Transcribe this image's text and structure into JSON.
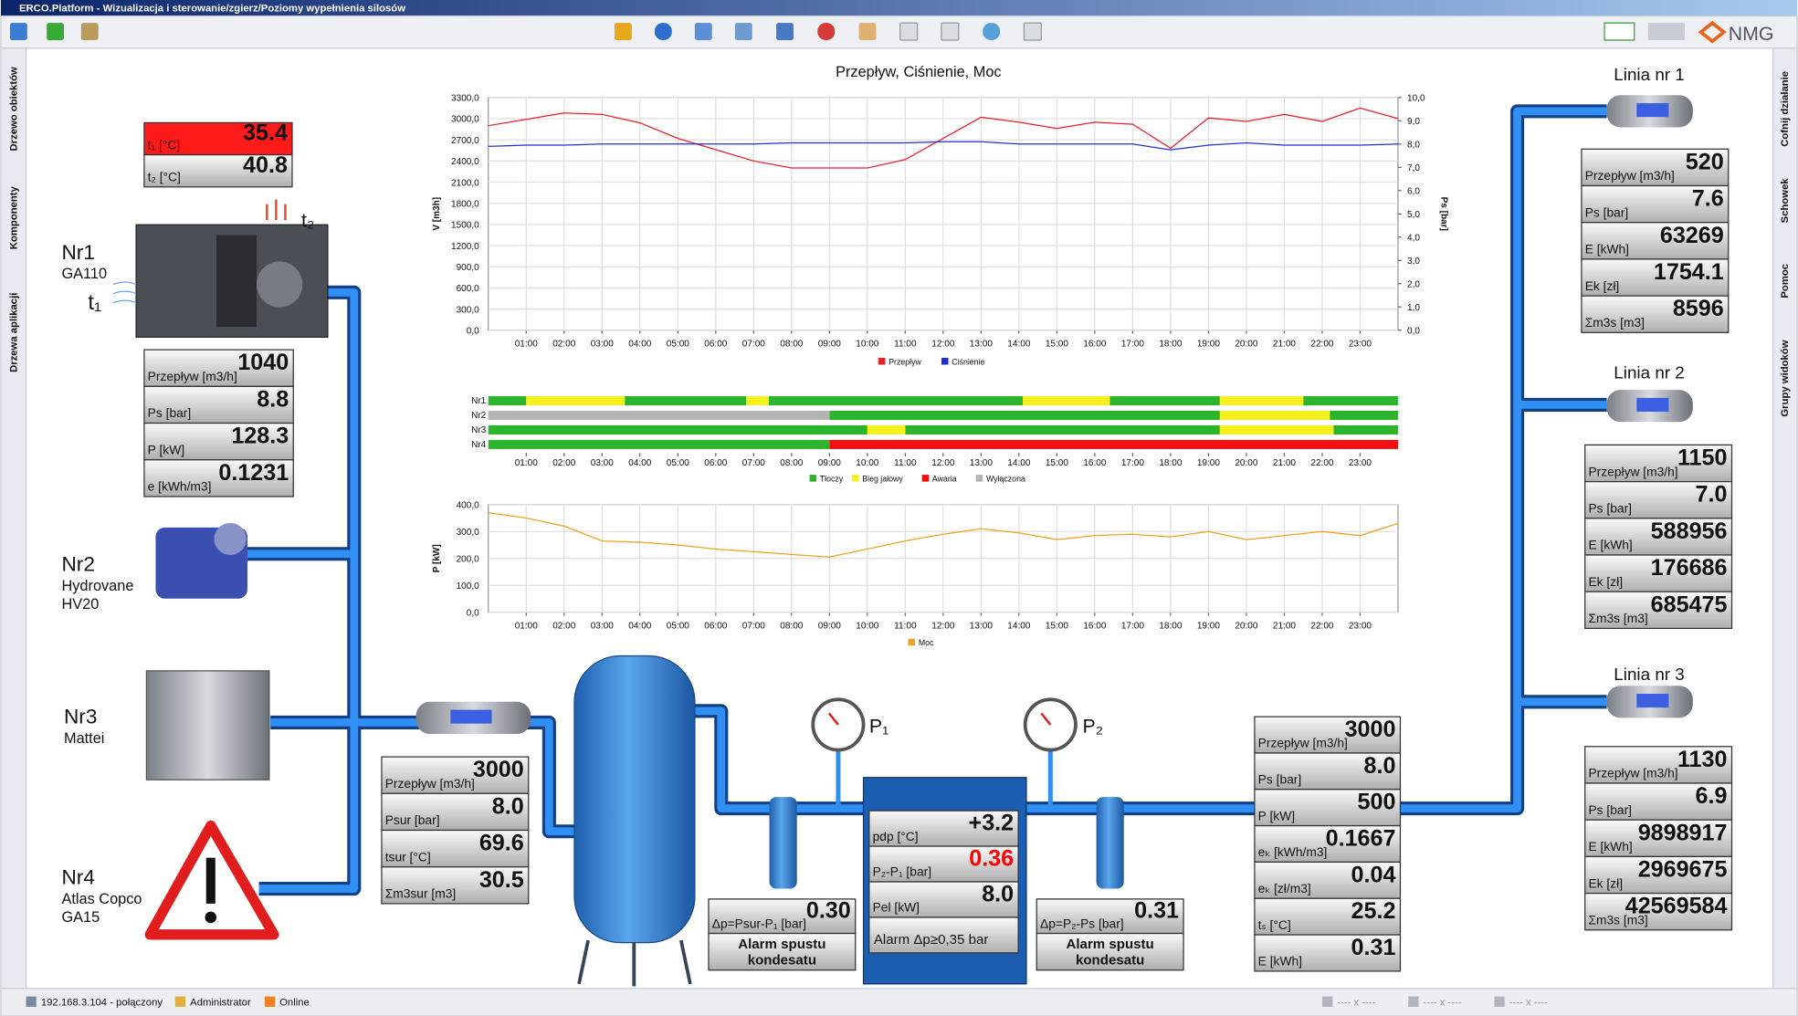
{
  "window": {
    "title": "ERCO.Platform - Wizualizacja i sterowanie/zgierz/Poziomy wypełnienia silosów",
    "logo": "NMG"
  },
  "sidebar_left": [
    "Drzewo obiektów",
    "Komponenty",
    "Drzewa aplikacji"
  ],
  "sidebar_right": [
    "Cofnij działanie",
    "Schowek",
    "Pomoc",
    "Grupy widoków"
  ],
  "status_bar": [
    "192.168.3.104 - połączony",
    "Administrator",
    "Online",
    "---- x ----",
    "---- x ----",
    "---- x ----"
  ],
  "equipment": [
    {
      "name": "Nr1",
      "model": [
        "GA110"
      ]
    },
    {
      "name": "Nr2",
      "model": [
        "Hydrovane",
        "HV20"
      ]
    },
    {
      "name": "Nr3",
      "model": [
        "Mattei"
      ]
    },
    {
      "name": "Nr4",
      "model": [
        "Atlas Copco",
        "GA15"
      ]
    }
  ],
  "sensors": [
    "t₁",
    "t₂"
  ],
  "gauges": [
    "P₁",
    "P₂"
  ],
  "lines": [
    "Linia nr 1",
    "Linia nr 2",
    "Linia nr 3"
  ],
  "panels": [
    {
      "rows": [
        {
          "label": "t₁ [°C]",
          "value": "35.4",
          "color": "#ff1a1a"
        },
        {
          "label": "t₂ [°C]",
          "value": "40.8"
        }
      ]
    },
    {
      "rows": [
        {
          "label": "Przepływ [m3/h]",
          "value": "1040"
        },
        {
          "label": "Ps [bar]",
          "value": "8.8"
        },
        {
          "label": "P [kW]",
          "value": "128.3"
        },
        {
          "label": "e [kWh/m3]",
          "value": "0.1231"
        }
      ]
    },
    {
      "rows": [
        {
          "label": "Przepływ [m3/h]",
          "value": "3000"
        },
        {
          "label": "Psur [bar]",
          "value": "8.0"
        },
        {
          "label": "tsur [°C]",
          "value": "69.6"
        },
        {
          "label": "Σm3sur [m3]",
          "value": "30.5"
        }
      ]
    },
    {
      "rows": [
        {
          "label": "pdp [°C]",
          "value": "+3.2"
        },
        {
          "label": "P₂-P₁ [bar]",
          "value": "0.36",
          "value_color": "#ff0000"
        },
        {
          "label": "Pel [kW]",
          "value": "8.0"
        }
      ],
      "alarm": "Alarm Δp≥0,35 bar"
    },
    {
      "rows": [
        {
          "label": "Δp=Psur-P₁ [bar]",
          "value": "0.30"
        }
      ],
      "notice": [
        "Alarm spustu",
        "kondesatu"
      ]
    },
    {
      "rows": [
        {
          "label": "Δp=P₂-Ps [bar]",
          "value": "0.31"
        }
      ],
      "notice": [
        "Alarm spustu",
        "kondesatu"
      ]
    },
    {
      "rows": [
        {
          "label": "Przepływ [m3/h]",
          "value": "3000"
        },
        {
          "label": "Ps [bar]",
          "value": "8.0"
        },
        {
          "label": "P [kW]",
          "value": "500"
        },
        {
          "label": "eₖ [kWh/m3]",
          "value": "0.1667"
        },
        {
          "label": "eₖ [zł/m3]",
          "value": "0.04"
        },
        {
          "label": "tₛ [°C]",
          "value": "25.2"
        },
        {
          "label": "E [kWh]",
          "value": "0.31"
        }
      ]
    },
    {
      "rows": [
        {
          "label": "Przepływ [m3/h]",
          "value": "520"
        },
        {
          "label": "Ps [bar]",
          "value": "7.6"
        },
        {
          "label": "E [kWh]",
          "value": "63269"
        },
        {
          "label": "Ek [zł]",
          "value": "1754.1"
        },
        {
          "label": "Σm3s [m3]",
          "value": "8596"
        }
      ]
    },
    {
      "rows": [
        {
          "label": "Przepływ [m3/h]",
          "value": "1150"
        },
        {
          "label": "Ps [bar]",
          "value": "7.0"
        },
        {
          "label": "E [kWh]",
          "value": "588956"
        },
        {
          "label": "Ek [zł]",
          "value": "176686"
        },
        {
          "label": "Σm3s [m3]",
          "value": "685475"
        }
      ]
    },
    {
      "rows": [
        {
          "label": "Przepływ [m3/h]",
          "value": "1130"
        },
        {
          "label": "Ps [bar]",
          "value": "6.9"
        },
        {
          "label": "E [kWh]",
          "value": "9898917"
        },
        {
          "label": "Ek [zł]",
          "value": "2969675"
        },
        {
          "label": "Σm3s [m3]",
          "value": "42569584"
        }
      ]
    }
  ],
  "chart_data": [
    {
      "type": "line",
      "title": "Przepływ, Ciśnienie, Moc",
      "ylabel": "V [m3h]",
      "y2label": "Ps [bar]",
      "grid": true,
      "x": [
        0,
        1,
        2,
        3,
        4,
        5,
        6,
        7,
        8,
        9,
        10,
        11,
        12,
        13,
        14,
        15,
        16,
        17,
        18,
        19,
        20,
        21,
        22,
        23,
        24
      ],
      "xlim": [
        0,
        24
      ],
      "xticks": [
        {
          "value": 1,
          "label": "01:00"
        },
        {
          "value": 2,
          "label": "02:00"
        },
        {
          "value": 3,
          "label": "03:00"
        },
        {
          "value": 4,
          "label": "04:00"
        },
        {
          "value": 5,
          "label": "05:00"
        },
        {
          "value": 6,
          "label": "06:00"
        },
        {
          "value": 7,
          "label": "07:00"
        },
        {
          "value": 8,
          "label": "08:00"
        },
        {
          "value": 9,
          "label": "09:00"
        },
        {
          "value": 10,
          "label": "10:00"
        },
        {
          "value": 11,
          "label": "11:00"
        },
        {
          "value": 12,
          "label": "12:00"
        },
        {
          "value": 13,
          "label": "13:00"
        },
        {
          "value": 14,
          "label": "14:00"
        },
        {
          "value": 15,
          "label": "15:00"
        },
        {
          "value": 16,
          "label": "16:00"
        },
        {
          "value": 17,
          "label": "17:00"
        },
        {
          "value": 18,
          "label": "18:00"
        },
        {
          "value": 19,
          "label": "19:00"
        },
        {
          "value": 20,
          "label": "20:00"
        },
        {
          "value": 21,
          "label": "21:00"
        },
        {
          "value": 22,
          "label": "22:00"
        },
        {
          "value": 23,
          "label": "23:00"
        }
      ],
      "ylim": [
        0,
        3300
      ],
      "yticks": [
        {
          "value": 0,
          "label": "0,0"
        },
        {
          "value": 300,
          "label": "300,0"
        },
        {
          "value": 600,
          "label": "600,0"
        },
        {
          "value": 900,
          "label": "900,0"
        },
        {
          "value": 1200,
          "label": "1200,0"
        },
        {
          "value": 1500,
          "label": "1500,0"
        },
        {
          "value": 1800,
          "label": "1800,0"
        },
        {
          "value": 2100,
          "label": "2100,0"
        },
        {
          "value": 2400,
          "label": "2400,0"
        },
        {
          "value": 2700,
          "label": "2700,0"
        },
        {
          "value": 3000,
          "label": "3000,0"
        },
        {
          "value": 3300,
          "label": "3300,0"
        }
      ],
      "y2lim": [
        0,
        10
      ],
      "y2ticks": [
        {
          "value": 0,
          "label": "0,0"
        },
        {
          "value": 1,
          "label": "1,0"
        },
        {
          "value": 2,
          "label": "2,0"
        },
        {
          "value": 3,
          "label": "3,0"
        },
        {
          "value": 4,
          "label": "4,0"
        },
        {
          "value": 5,
          "label": "5,0"
        },
        {
          "value": 6,
          "label": "6,0"
        },
        {
          "value": 7,
          "label": "7,0"
        },
        {
          "value": 8,
          "label": "8,0"
        },
        {
          "value": 9,
          "label": "9,0"
        },
        {
          "value": 10,
          "label": "10,0"
        }
      ],
      "series": [
        {
          "name": "Przepływ",
          "color": "#e8202a",
          "values": [
            2900,
            2990,
            3080,
            3060,
            2940,
            2720,
            2560,
            2400,
            2300,
            2300,
            2300,
            2420,
            2720,
            3020,
            2950,
            2860,
            2950,
            2920,
            2580,
            3010,
            2960,
            3060,
            2960,
            3150,
            3000
          ]
        },
        {
          "name": "Ciśnienie",
          "color": "#1f2fd6",
          "axis": "y2",
          "values": [
            7.9,
            7.95,
            7.95,
            8.0,
            8.0,
            8.0,
            8.0,
            8.0,
            8.05,
            8.05,
            8.05,
            8.05,
            8.1,
            8.1,
            8.0,
            8.0,
            8.0,
            8.0,
            7.75,
            7.95,
            8.05,
            7.95,
            7.95,
            7.95,
            8.0
          ]
        }
      ]
    },
    {
      "type": "timeline",
      "categories": [
        "Nr1",
        "Nr2",
        "Nr3",
        "Nr4"
      ],
      "xlim": [
        0,
        24
      ],
      "xticks": [
        {
          "value": 1,
          "label": "01:00"
        },
        {
          "value": 2,
          "label": "02:00"
        },
        {
          "value": 3,
          "label": "03:00"
        },
        {
          "value": 4,
          "label": "04:00"
        },
        {
          "value": 5,
          "label": "05:00"
        },
        {
          "value": 6,
          "label": "06:00"
        },
        {
          "value": 7,
          "label": "07:00"
        },
        {
          "value": 8,
          "label": "08:00"
        },
        {
          "value": 9,
          "label": "09:00"
        },
        {
          "value": 10,
          "label": "10:00"
        },
        {
          "value": 11,
          "label": "11:00"
        },
        {
          "value": 12,
          "label": "12:00"
        },
        {
          "value": 13,
          "label": "13:00"
        },
        {
          "value": 14,
          "label": "14:00"
        },
        {
          "value": 15,
          "label": "15:00"
        },
        {
          "value": 16,
          "label": "16:00"
        },
        {
          "value": 17,
          "label": "17:00"
        },
        {
          "value": 18,
          "label": "18:00"
        },
        {
          "value": 19,
          "label": "19:00"
        },
        {
          "value": 20,
          "label": "20:00"
        },
        {
          "value": 21,
          "label": "21:00"
        },
        {
          "value": 22,
          "label": "22:00"
        },
        {
          "value": 23,
          "label": "23:00"
        }
      ],
      "series": [
        {
          "name": "Tłoczy",
          "color": "#2cb52c",
          "spans": [
            [
              [
                0,
                1
              ],
              [
                3.6,
                6.8
              ],
              [
                7.4,
                14.1
              ],
              [
                16.4,
                19.3
              ],
              [
                21.5,
                24
              ]
            ],
            [
              [
                9,
                19.3
              ],
              [
                22.2,
                24
              ]
            ],
            [
              [
                0,
                10
              ],
              [
                11,
                19.3
              ],
              [
                22.3,
                24
              ]
            ],
            [
              [
                0,
                9
              ]
            ]
          ]
        },
        {
          "name": "Bieg jałowy",
          "color": "#f5f01e",
          "spans": [
            [
              [
                1,
                3.6
              ],
              [
                6.8,
                7.4
              ],
              [
                14.1,
                16.4
              ],
              [
                19.3,
                21.5
              ]
            ],
            [
              [
                19.3,
                22.2
              ]
            ],
            [
              [
                10,
                11
              ],
              [
                19.3,
                22.3
              ]
            ],
            []
          ]
        },
        {
          "name": "Awaria",
          "color": "#ee1111",
          "spans": [
            [],
            [],
            [],
            [
              [
                9,
                24
              ]
            ]
          ]
        },
        {
          "name": "Wyłączona",
          "color": "#b4b4b4",
          "spans": [
            [],
            [
              [
                0,
                9
              ]
            ],
            [],
            []
          ]
        }
      ]
    },
    {
      "type": "line",
      "ylabel": "P [kW]",
      "grid": true,
      "x": [
        0,
        1,
        2,
        3,
        4,
        5,
        6,
        7,
        8,
        9,
        10,
        11,
        12,
        13,
        14,
        15,
        16,
        17,
        18,
        19,
        20,
        21,
        22,
        23,
        24
      ],
      "xlim": [
        0,
        24
      ],
      "xticks": [
        {
          "value": 1,
          "label": "01:00"
        },
        {
          "value": 2,
          "label": "02:00"
        },
        {
          "value": 3,
          "label": "03:00"
        },
        {
          "value": 4,
          "label": "04:00"
        },
        {
          "value": 5,
          "label": "05:00"
        },
        {
          "value": 6,
          "label": "06:00"
        },
        {
          "value": 7,
          "label": "07:00"
        },
        {
          "value": 8,
          "label": "08:00"
        },
        {
          "value": 9,
          "label": "09:00"
        },
        {
          "value": 10,
          "label": "10:00"
        },
        {
          "value": 11,
          "label": "11:00"
        },
        {
          "value": 12,
          "label": "12:00"
        },
        {
          "value": 13,
          "label": "13:00"
        },
        {
          "value": 14,
          "label": "14:00"
        },
        {
          "value": 15,
          "label": "15:00"
        },
        {
          "value": 16,
          "label": "16:00"
        },
        {
          "value": 17,
          "label": "17:00"
        },
        {
          "value": 18,
          "label": "18:00"
        },
        {
          "value": 19,
          "label": "19:00"
        },
        {
          "value": 20,
          "label": "20:00"
        },
        {
          "value": 21,
          "label": "21:00"
        },
        {
          "value": 22,
          "label": "22:00"
        },
        {
          "value": 23,
          "label": "23:00"
        }
      ],
      "ylim": [
        0,
        400
      ],
      "yticks": [
        {
          "value": 0,
          "label": "0,0"
        },
        {
          "value": 100,
          "label": "100,0"
        },
        {
          "value": 200,
          "label": "200,0"
        },
        {
          "value": 300,
          "label": "300,0"
        },
        {
          "value": 400,
          "label": "400,0"
        }
      ],
      "series": [
        {
          "name": "Moc",
          "color": "#f0a020",
          "values": [
            370,
            350,
            320,
            265,
            260,
            250,
            235,
            225,
            215,
            205,
            235,
            265,
            290,
            310,
            295,
            270,
            285,
            290,
            280,
            300,
            270,
            285,
            300,
            285,
            330
          ]
        }
      ]
    }
  ]
}
